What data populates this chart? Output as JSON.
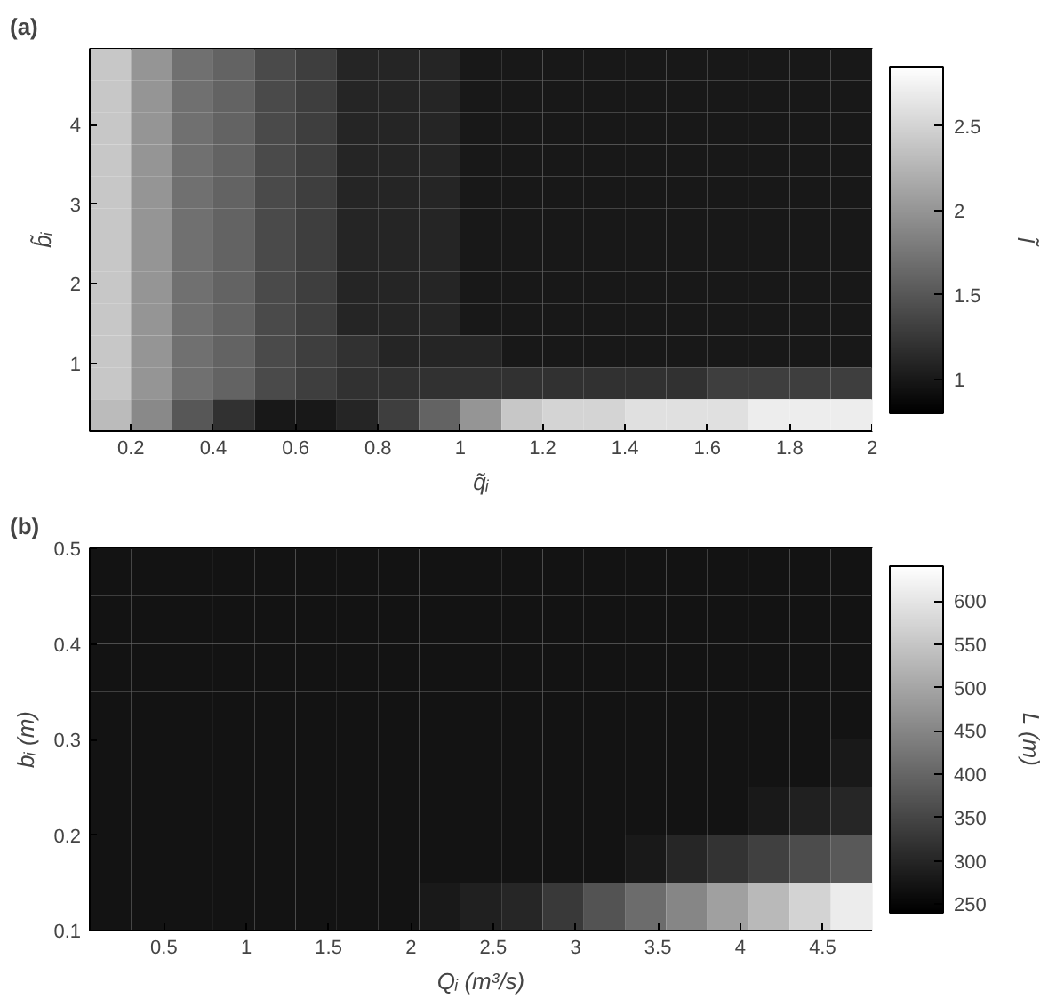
{
  "chart_data": [
    {
      "type": "heatmap",
      "title": "(a)",
      "xlabel": "q̃ᵢ",
      "ylabel": "b̃ᵢ",
      "clabel": "l̃",
      "xlim": [
        0.1,
        2
      ],
      "xticks": [
        0.2,
        0.4,
        0.6,
        0.8,
        1,
        1.2,
        1.4,
        1.6,
        1.8,
        2
      ],
      "ylim": [
        0.15,
        4.95
      ],
      "yticks": [
        1,
        2,
        3,
        4
      ],
      "clim": [
        0.8,
        2.85
      ],
      "cticks": [
        1,
        1.5,
        2,
        2.5
      ],
      "cells": [
        [
          2.4,
          2.0,
          1.7,
          1.6,
          1.4,
          1.3,
          1.1,
          1.1,
          1.1,
          1.0,
          1.0,
          1.0,
          1.0,
          1.0,
          1.0,
          1.0,
          1.0,
          1.0,
          1.0
        ],
        [
          2.4,
          2.0,
          1.7,
          1.6,
          1.4,
          1.3,
          1.1,
          1.1,
          1.1,
          1.0,
          1.0,
          1.0,
          1.0,
          1.0,
          1.0,
          1.0,
          1.0,
          1.0,
          1.0
        ],
        [
          2.4,
          2.0,
          1.7,
          1.6,
          1.4,
          1.3,
          1.1,
          1.1,
          1.1,
          1.0,
          1.0,
          1.0,
          1.0,
          1.0,
          1.0,
          1.0,
          1.0,
          1.0,
          1.0
        ],
        [
          2.4,
          2.0,
          1.7,
          1.6,
          1.4,
          1.3,
          1.1,
          1.1,
          1.1,
          1.0,
          1.0,
          1.0,
          1.0,
          1.0,
          1.0,
          1.0,
          1.0,
          1.0,
          1.0
        ],
        [
          2.4,
          2.0,
          1.7,
          1.6,
          1.4,
          1.3,
          1.1,
          1.1,
          1.1,
          1.0,
          1.0,
          1.0,
          1.0,
          1.0,
          1.0,
          1.0,
          1.0,
          1.0,
          1.0
        ],
        [
          2.4,
          2.0,
          1.7,
          1.6,
          1.4,
          1.3,
          1.1,
          1.1,
          1.1,
          1.0,
          1.0,
          1.0,
          1.0,
          1.0,
          1.0,
          1.0,
          1.0,
          1.0,
          1.0
        ],
        [
          2.4,
          2.0,
          1.7,
          1.6,
          1.4,
          1.3,
          1.1,
          1.1,
          1.1,
          1.0,
          1.0,
          1.0,
          1.0,
          1.0,
          1.0,
          1.0,
          1.0,
          1.0,
          1.0
        ],
        [
          2.4,
          2.0,
          1.7,
          1.6,
          1.4,
          1.3,
          1.1,
          1.1,
          1.1,
          1.0,
          1.0,
          1.0,
          1.0,
          1.0,
          1.0,
          1.0,
          1.0,
          1.0,
          1.0
        ],
        [
          2.4,
          2.0,
          1.7,
          1.6,
          1.4,
          1.3,
          1.1,
          1.1,
          1.1,
          1.0,
          1.0,
          1.0,
          1.0,
          1.0,
          1.0,
          1.0,
          1.0,
          1.0,
          1.0
        ],
        [
          2.4,
          2.0,
          1.7,
          1.6,
          1.4,
          1.3,
          1.2,
          1.1,
          1.1,
          1.1,
          1.0,
          1.0,
          1.0,
          1.0,
          1.0,
          1.0,
          1.0,
          1.0,
          1.0
        ],
        [
          2.4,
          2.0,
          1.7,
          1.6,
          1.4,
          1.3,
          1.2,
          1.2,
          1.2,
          1.2,
          1.2,
          1.2,
          1.2,
          1.2,
          1.2,
          1.3,
          1.3,
          1.3,
          1.3
        ],
        [
          2.3,
          1.9,
          1.5,
          1.2,
          1.0,
          1.0,
          1.1,
          1.3,
          1.6,
          2.0,
          2.4,
          2.5,
          2.5,
          2.6,
          2.6,
          2.6,
          2.7,
          2.7,
          2.7
        ]
      ]
    },
    {
      "type": "heatmap",
      "title": "(b)",
      "xlabel": "Qᵢ (m³/s)",
      "ylabel": "bᵢ (m)",
      "clabel": "L (m)",
      "xlim": [
        0.05,
        4.8
      ],
      "xticks": [
        0.5,
        1,
        1.5,
        2,
        2.5,
        3,
        3.5,
        4,
        4.5
      ],
      "ylim": [
        0.1,
        0.5
      ],
      "yticks": [
        0.1,
        0.2,
        0.3,
        0.4,
        0.5
      ],
      "clim": [
        240,
        640
      ],
      "cticks": [
        250,
        300,
        350,
        400,
        450,
        500,
        550,
        600
      ],
      "cells": [
        [
          270,
          270,
          270,
          270,
          270,
          270,
          270,
          270,
          270,
          270,
          270,
          270,
          270,
          270,
          270,
          270,
          270,
          270,
          270
        ],
        [
          270,
          270,
          270,
          270,
          270,
          270,
          270,
          270,
          270,
          270,
          270,
          270,
          270,
          270,
          270,
          270,
          270,
          270,
          270
        ],
        [
          270,
          270,
          270,
          270,
          270,
          270,
          270,
          270,
          270,
          270,
          270,
          270,
          270,
          270,
          270,
          270,
          270,
          270,
          270
        ],
        [
          270,
          270,
          270,
          270,
          270,
          270,
          270,
          270,
          270,
          270,
          270,
          270,
          270,
          270,
          270,
          270,
          270,
          270,
          270
        ],
        [
          270,
          270,
          270,
          270,
          270,
          270,
          270,
          270,
          270,
          270,
          270,
          270,
          270,
          270,
          270,
          270,
          270,
          270,
          280
        ],
        [
          270,
          270,
          270,
          270,
          270,
          270,
          270,
          270,
          270,
          270,
          270,
          270,
          270,
          270,
          270,
          270,
          280,
          290,
          300
        ],
        [
          270,
          270,
          270,
          270,
          270,
          270,
          270,
          270,
          270,
          270,
          270,
          270,
          270,
          280,
          300,
          320,
          340,
          360,
          380
        ],
        [
          270,
          270,
          270,
          270,
          270,
          270,
          270,
          270,
          280,
          290,
          300,
          330,
          370,
          410,
          450,
          490,
          530,
          570,
          610
        ]
      ]
    }
  ]
}
